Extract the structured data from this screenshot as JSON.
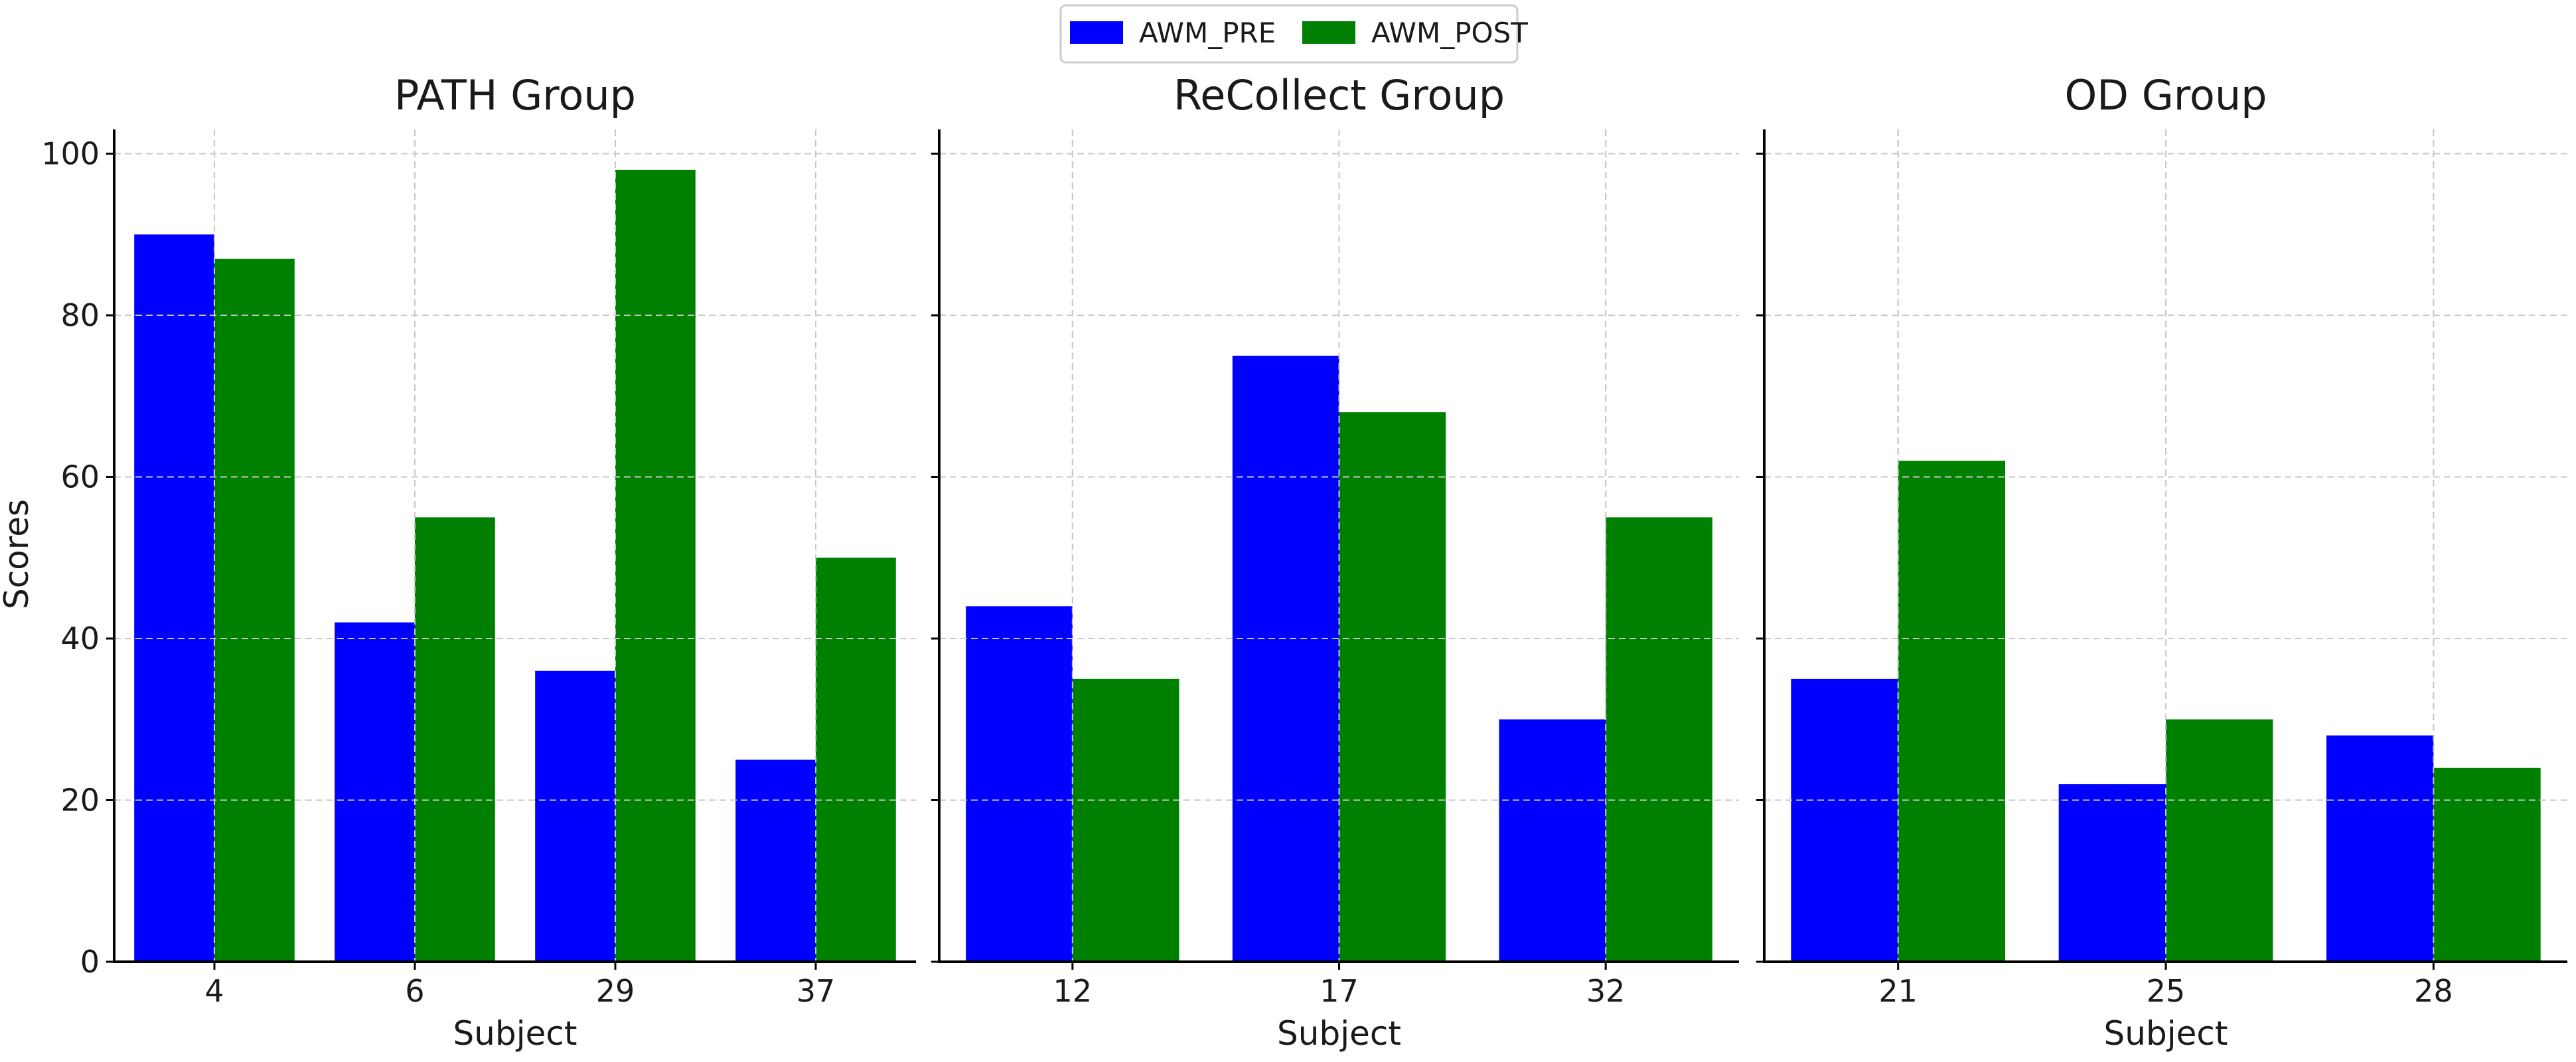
{
  "chart_data": {
    "type": "bar",
    "ylabel": "Scores",
    "ylim": [
      0,
      103
    ],
    "yticks": [
      0,
      20,
      40,
      60,
      80,
      100
    ],
    "grid": true,
    "legend": {
      "placement": "top-center",
      "entries": [
        {
          "name": "AWM_PRE",
          "color": "#0000ff"
        },
        {
          "name": "AWM_POST",
          "color": "#008000"
        }
      ]
    },
    "panels": [
      {
        "title": "PATH Group",
        "xlabel": "Subject",
        "categories": [
          "4",
          "6",
          "29",
          "37"
        ],
        "series": [
          {
            "name": "AWM_PRE",
            "values": [
              90,
              42,
              36,
              25
            ]
          },
          {
            "name": "AWM_POST",
            "values": [
              87,
              55,
              98,
              50
            ]
          }
        ]
      },
      {
        "title": "ReCollect Group",
        "xlabel": "Subject",
        "categories": [
          "12",
          "17",
          "32"
        ],
        "series": [
          {
            "name": "AWM_PRE",
            "values": [
              44,
              75,
              30
            ]
          },
          {
            "name": "AWM_POST",
            "values": [
              35,
              68,
              55
            ]
          }
        ]
      },
      {
        "title": "OD Group",
        "xlabel": "Subject",
        "categories": [
          "21",
          "25",
          "28"
        ],
        "series": [
          {
            "name": "AWM_PRE",
            "values": [
              35,
              22,
              28
            ]
          },
          {
            "name": "AWM_POST",
            "values": [
              62,
              30,
              24
            ]
          }
        ]
      }
    ]
  }
}
